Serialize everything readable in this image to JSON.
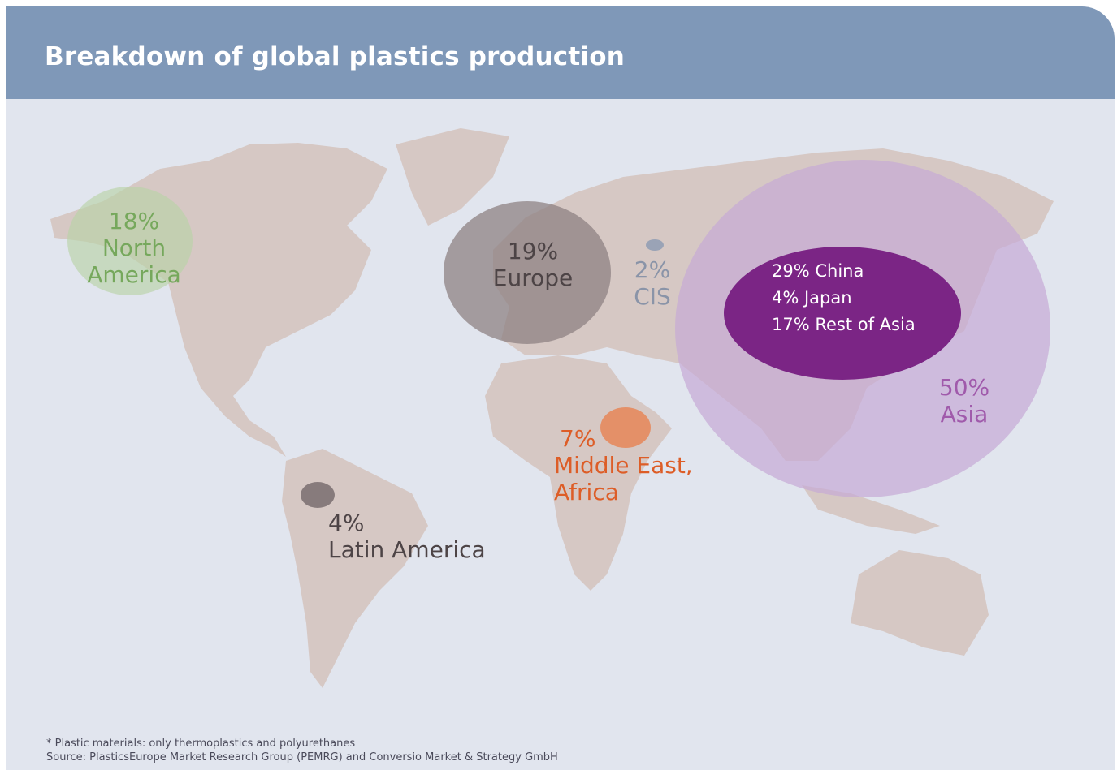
{
  "title": "Breakdown of global plastics production",
  "regions": [
    {
      "name": "North America",
      "value": 18,
      "value_label": "18%",
      "color": "#b9d3a8",
      "text_color": "#76a85c"
    },
    {
      "name": "Europe",
      "value": 19,
      "value_label": "19%",
      "color": "#8e8283",
      "text_color": "#4d4446"
    },
    {
      "name": "CIS",
      "value": 2,
      "value_label": "2%",
      "color": "#9aa3b6",
      "text_color": "#8a94a8"
    },
    {
      "name": "Asia",
      "value": 50,
      "value_label": "50%",
      "color": "#c6a9d6",
      "text_color": "#a05aab"
    },
    {
      "name": "Middle East, Africa",
      "value": 7,
      "value_label": "7%",
      "color": "#e58a5e",
      "text_color": "#dd5d27"
    },
    {
      "name": "Latin America",
      "value": 4,
      "value_label": "4%",
      "color": "#877b7c",
      "text_color": "#4d4446"
    }
  ],
  "asia_breakdown": {
    "color": "#7b2585",
    "items": [
      "29% China",
      "4% Japan",
      "17% Rest of Asia"
    ]
  },
  "footnotes": [
    "* Plastic materials: only thermoplastics and polyurethanes",
    "Source: PlasticsEurope Market Research Group (PEMRG) and Conversio Market & Strategy GmbH"
  ]
}
